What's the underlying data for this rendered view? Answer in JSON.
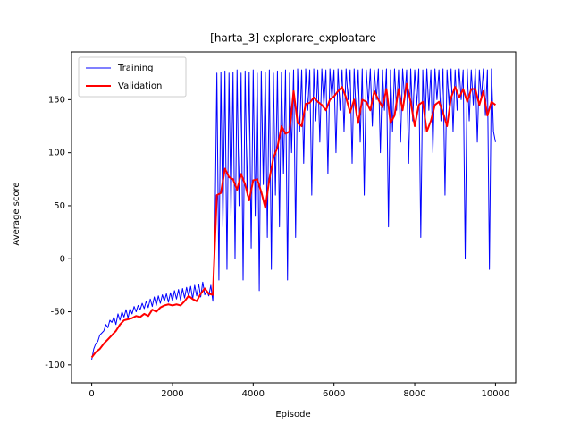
{
  "chart_data": {
    "type": "line",
    "title": "[harta_3] explorare_exploatare",
    "xlabel": "Episode",
    "ylabel": "Average score",
    "xlim": [
      -500,
      10500
    ],
    "ylim": [
      -117,
      195
    ],
    "xticks": [
      0,
      2000,
      4000,
      6000,
      8000,
      10000
    ],
    "yticks": [
      -100,
      -50,
      0,
      50,
      100,
      150
    ],
    "legend": "upper left",
    "series": [
      {
        "name": "Training",
        "color": "#0000ff",
        "width": 1,
        "x": [
          0,
          50,
          100,
          150,
          200,
          250,
          300,
          350,
          400,
          450,
          500,
          550,
          600,
          650,
          700,
          750,
          800,
          850,
          900,
          950,
          1000,
          1050,
          1100,
          1150,
          1200,
          1250,
          1300,
          1350,
          1400,
          1450,
          1500,
          1550,
          1600,
          1650,
          1700,
          1750,
          1800,
          1850,
          1900,
          1950,
          2000,
          2050,
          2100,
          2150,
          2200,
          2250,
          2300,
          2350,
          2400,
          2450,
          2500,
          2550,
          2600,
          2650,
          2700,
          2750,
          2800,
          2850,
          2900,
          2950,
          3000,
          3050,
          3100,
          3150,
          3200,
          3250,
          3300,
          3350,
          3400,
          3450,
          3500,
          3550,
          3600,
          3650,
          3700,
          3750,
          3800,
          3850,
          3900,
          3950,
          4000,
          4050,
          4100,
          4150,
          4200,
          4250,
          4300,
          4350,
          4400,
          4450,
          4500,
          4550,
          4600,
          4650,
          4700,
          4750,
          4800,
          4850,
          4900,
          4950,
          5000,
          5050,
          5100,
          5150,
          5200,
          5250,
          5300,
          5350,
          5400,
          5450,
          5500,
          5550,
          5600,
          5650,
          5700,
          5750,
          5800,
          5850,
          5900,
          5950,
          6000,
          6050,
          6100,
          6150,
          6200,
          6250,
          6300,
          6350,
          6400,
          6450,
          6500,
          6550,
          6600,
          6650,
          6700,
          6750,
          6800,
          6850,
          6900,
          6950,
          7000,
          7050,
          7100,
          7150,
          7200,
          7250,
          7300,
          7350,
          7400,
          7450,
          7500,
          7550,
          7600,
          7650,
          7700,
          7750,
          7800,
          7850,
          7900,
          7950,
          8000,
          8050,
          8100,
          8150,
          8200,
          8250,
          8300,
          8350,
          8400,
          8450,
          8500,
          8550,
          8600,
          8650,
          8700,
          8750,
          8800,
          8850,
          8900,
          8950,
          9000,
          9050,
          9100,
          9150,
          9200,
          9250,
          9300,
          9350,
          9400,
          9450,
          9500,
          9550,
          9600,
          9650,
          9700,
          9750,
          9800,
          9850,
          9900,
          9950,
          10000
        ],
        "values": [
          -95,
          -85,
          -80,
          -78,
          -72,
          -70,
          -68,
          -62,
          -65,
          -58,
          -60,
          -55,
          -62,
          -52,
          -58,
          -50,
          -55,
          -48,
          -56,
          -47,
          -52,
          -45,
          -50,
          -44,
          -48,
          -42,
          -47,
          -40,
          -46,
          -38,
          -45,
          -36,
          -44,
          -35,
          -42,
          -34,
          -40,
          -33,
          -41,
          -32,
          -40,
          -30,
          -38,
          -29,
          -39,
          -28,
          -37,
          -27,
          -36,
          -26,
          -38,
          -25,
          -35,
          -24,
          -36,
          -22,
          -34,
          -30,
          -35,
          -25,
          -40,
          20,
          175,
          -20,
          176,
          30,
          177,
          -10,
          175,
          40,
          176,
          0,
          178,
          50,
          175,
          -20,
          177,
          60,
          176,
          10,
          178,
          40,
          175,
          -30,
          177,
          70,
          176,
          20,
          178,
          -10,
          175,
          60,
          177,
          30,
          176,
          80,
          178,
          -20,
          175,
          100,
          178,
          20,
          179,
          120,
          178,
          90,
          179,
          140,
          178,
          60,
          179,
          130,
          178,
          110,
          179,
          145,
          178,
          80,
          179,
          150,
          178,
          100,
          179,
          140,
          178,
          120,
          179,
          150,
          178,
          90,
          179,
          135,
          178,
          110,
          179,
          60,
          178,
          145,
          179,
          125,
          178,
          150,
          179,
          100,
          178,
          140,
          179,
          30,
          178,
          120,
          179,
          140,
          178,
          110,
          179,
          150,
          178,
          90,
          179,
          130,
          178,
          145,
          179,
          20,
          178,
          120,
          179,
          140,
          178,
          100,
          179,
          150,
          178,
          130,
          179,
          60,
          178,
          145,
          179,
          120,
          178,
          140,
          179,
          150,
          178,
          0,
          179,
          130,
          178,
          145,
          179,
          110,
          178,
          150,
          179,
          135,
          178,
          -10,
          179,
          120,
          110
        ]
      },
      {
        "name": "Validation",
        "color": "#ff0000",
        "width": 2,
        "x": [
          0,
          100,
          200,
          300,
          400,
          500,
          600,
          700,
          800,
          900,
          1000,
          1100,
          1200,
          1300,
          1400,
          1500,
          1600,
          1700,
          1800,
          1900,
          2000,
          2100,
          2200,
          2300,
          2400,
          2500,
          2600,
          2700,
          2800,
          2900,
          3000,
          3100,
          3200,
          3300,
          3400,
          3500,
          3600,
          3700,
          3800,
          3900,
          4000,
          4100,
          4200,
          4300,
          4400,
          4500,
          4600,
          4700,
          4800,
          4900,
          5000,
          5100,
          5200,
          5300,
          5400,
          5500,
          5600,
          5700,
          5800,
          5900,
          6000,
          6100,
          6200,
          6300,
          6400,
          6500,
          6600,
          6700,
          6800,
          6900,
          7000,
          7100,
          7200,
          7300,
          7400,
          7500,
          7600,
          7700,
          7800,
          7900,
          8000,
          8100,
          8200,
          8300,
          8400,
          8500,
          8600,
          8700,
          8800,
          8900,
          9000,
          9100,
          9200,
          9300,
          9400,
          9500,
          9600,
          9700,
          9800,
          9900,
          10000
        ],
        "values": [
          -93,
          -88,
          -85,
          -80,
          -76,
          -72,
          -68,
          -62,
          -58,
          -57,
          -56,
          -54,
          -55,
          -52,
          -54,
          -48,
          -50,
          -46,
          -44,
          -43,
          -44,
          -43,
          -44,
          -40,
          -35,
          -38,
          -40,
          -33,
          -28,
          -33,
          -34,
          60,
          62,
          85,
          77,
          75,
          65,
          80,
          70,
          55,
          74,
          75,
          63,
          48,
          75,
          95,
          105,
          125,
          118,
          120,
          158,
          128,
          125,
          146,
          147,
          152,
          148,
          145,
          140,
          150,
          153,
          158,
          162,
          152,
          138,
          150,
          128,
          150,
          148,
          140,
          158,
          150,
          143,
          160,
          128,
          135,
          160,
          140,
          165,
          148,
          125,
          145,
          148,
          120,
          130,
          145,
          148,
          138,
          125,
          152,
          162,
          152,
          160,
          148,
          160,
          160,
          145,
          158,
          135,
          148,
          145
        ]
      }
    ]
  }
}
